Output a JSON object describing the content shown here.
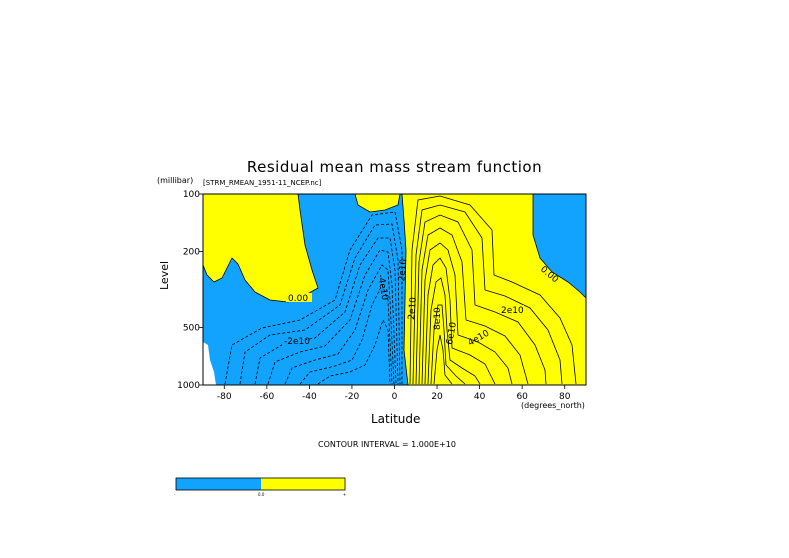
{
  "chart_data": {
    "type": "contour",
    "title": "Residual mean mass stream function",
    "subtitle": "[STRM_RMEAN_1951-11_NCEP.nc]",
    "xlabel": "Latitude",
    "x_unit": "(degrees_north)",
    "ylabel": "Level",
    "y_unit": "(millibar)",
    "xlim": [
      -90,
      90
    ],
    "ylim": [
      1000,
      100
    ],
    "y_scale": "log",
    "x_ticks": [
      -80,
      -60,
      -40,
      -20,
      0,
      20,
      40,
      60,
      80
    ],
    "y_ticks": [
      100,
      200,
      500,
      1000
    ],
    "contour_interval_text": "CONTOUR INTERVAL = 1.000E+10",
    "contour_labels": [
      "0.00",
      "-2e10",
      "-4e10",
      "-2e10",
      "2e10",
      "4e10",
      "6e10",
      "8e10",
      "2e10",
      "0.00"
    ],
    "fill_colors": {
      "negative": "#12a3ff",
      "positive": "#ffff00"
    },
    "colorbar": {
      "labels": [
        "-",
        "0.0",
        "+"
      ]
    },
    "grid": false
  }
}
